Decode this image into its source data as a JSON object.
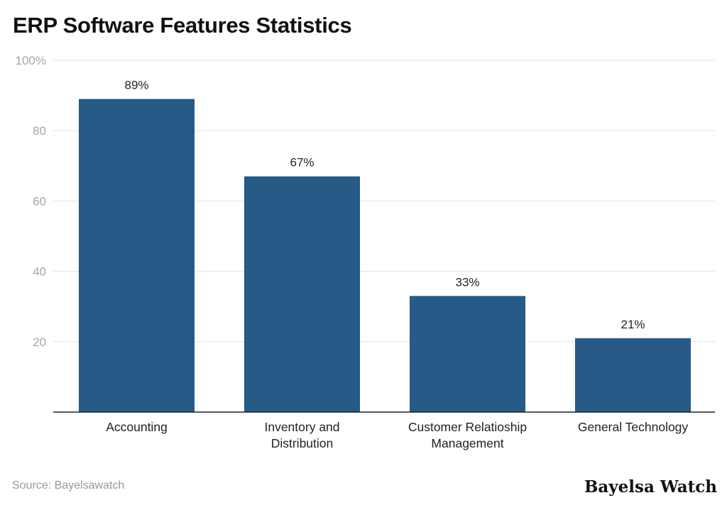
{
  "chart_data": {
    "type": "bar",
    "title": "ERP Software Features Statistics",
    "categories": [
      [
        "Accounting"
      ],
      [
        "Inventory and",
        "Distribution"
      ],
      [
        "Customer Relatioship",
        "Management"
      ],
      [
        "General Technology"
      ]
    ],
    "values": [
      89,
      67,
      33,
      21
    ],
    "data_labels": [
      "89%",
      "67%",
      "33%",
      "21%"
    ],
    "yticks": [
      20,
      40,
      60,
      80,
      100
    ],
    "ytick_labels": [
      "20",
      "40",
      "60",
      "80",
      "100%"
    ],
    "ylim": [
      0,
      100
    ],
    "xlabel": "",
    "ylabel": "",
    "grid": true,
    "bar_color": "#265a87"
  },
  "footer": {
    "source": "Source: Bayelsawatch",
    "logo": "Bayelsa Watch"
  }
}
